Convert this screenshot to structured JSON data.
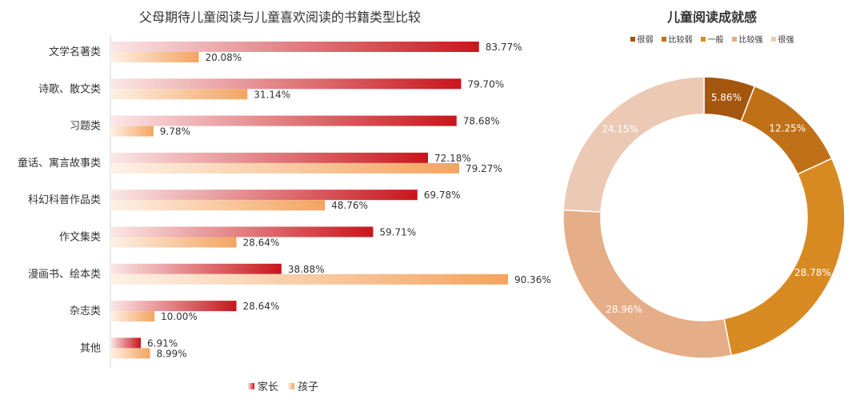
{
  "chart_data": [
    {
      "type": "bar",
      "orientation": "horizontal",
      "title": "父母期待儿童阅读与儿童喜欢阅读的书籍类型比较",
      "categories": [
        "文学名著类",
        "诗歌、散文类",
        "习题类",
        "童话、寓言故事类",
        "科幻科普作品类",
        "作文集类",
        "漫画书、绘本类",
        "杂志类",
        "其他"
      ],
      "series": [
        {
          "name": "家长",
          "values": [
            83.77,
            79.7,
            78.68,
            72.18,
            69.78,
            59.71,
            38.88,
            28.64,
            6.91
          ],
          "labels": [
            "83.77%",
            "79.70%",
            "78.68%",
            "72.18%",
            "69.78%",
            "59.71%",
            "38.88%",
            "28.64%",
            "6.91%"
          ],
          "color": "#c8151b"
        },
        {
          "name": "孩子",
          "values": [
            20.08,
            31.14,
            9.78,
            79.27,
            48.76,
            28.64,
            90.36,
            10.0,
            8.99
          ],
          "labels": [
            "20.08%",
            "31.14%",
            "9.78%",
            "79.27%",
            "48.76%",
            "28.64%",
            "90.36%",
            "10.00%",
            "8.99%"
          ],
          "color": "#f4a460"
        }
      ],
      "legend_position": "bottom",
      "grid": false
    },
    {
      "type": "pie",
      "style": "donut",
      "title": "儿童阅读成就感",
      "legend_position": "top",
      "slices": [
        {
          "name": "很弱",
          "value": 5.86,
          "label": "5.86%",
          "color": "#a5560e"
        },
        {
          "name": "比较弱",
          "value": 12.25,
          "label": "12.25%",
          "color": "#c07118"
        },
        {
          "name": "一般",
          "value": 28.78,
          "label": "28.78%",
          "color": "#d88a22"
        },
        {
          "name": "比较强",
          "value": 28.96,
          "label": "28.96%",
          "color": "#e5ad88"
        },
        {
          "name": "很强",
          "value": 24.15,
          "label": "24.15%",
          "color": "#ecc9b4"
        }
      ]
    }
  ]
}
